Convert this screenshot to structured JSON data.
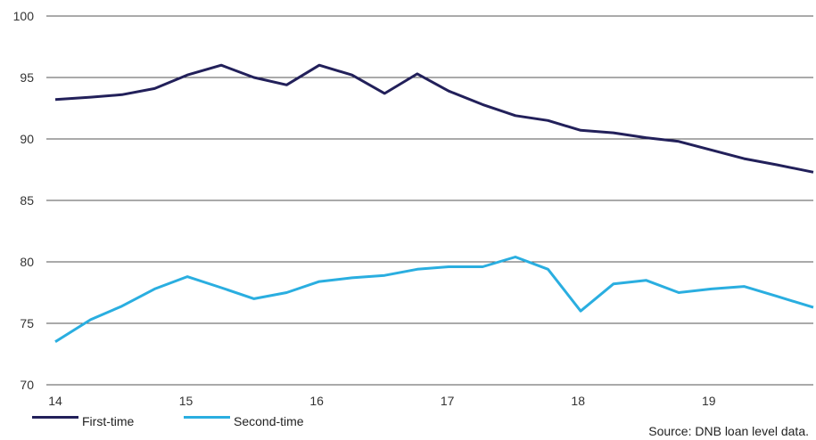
{
  "chart_data": {
    "type": "line",
    "ylim": [
      70,
      100
    ],
    "xlim": [
      14,
      19.8
    ],
    "yticks": [
      70,
      75,
      80,
      85,
      90,
      95,
      100
    ],
    "xticks": [
      14,
      15,
      16,
      17,
      18,
      19
    ],
    "grid": "horizontal",
    "legend_placement": "bottom-left",
    "series": [
      {
        "name": "First-time",
        "color": "#22205a",
        "x": [
          14,
          14.27,
          14.51,
          14.76,
          15.01,
          15.27,
          15.52,
          15.77,
          16.02,
          16.27,
          16.52,
          16.77,
          17.01,
          17.27,
          17.52,
          17.77,
          18.02,
          18.27,
          18.52,
          18.77,
          19.02,
          19.27,
          19.52,
          19.8
        ],
        "values": [
          93.2,
          93.4,
          93.6,
          94.1,
          95.2,
          96.0,
          95.0,
          94.4,
          96.0,
          95.2,
          93.7,
          95.3,
          93.9,
          92.8,
          91.9,
          91.5,
          90.7,
          90.5,
          90.1,
          89.8,
          89.1,
          88.4,
          87.9,
          87.3
        ]
      },
      {
        "name": "Second-time",
        "color": "#2aaee0",
        "x": [
          14,
          14.27,
          14.51,
          14.76,
          15.01,
          15.27,
          15.52,
          15.77,
          16.02,
          16.27,
          16.52,
          16.77,
          17.01,
          17.27,
          17.52,
          17.77,
          18.02,
          18.27,
          18.52,
          18.77,
          19.02,
          19.27,
          19.52,
          19.8
        ],
        "values": [
          73.5,
          75.3,
          76.4,
          77.8,
          78.8,
          77.9,
          77.0,
          77.5,
          78.4,
          78.7,
          78.9,
          79.4,
          79.6,
          79.6,
          80.4,
          79.4,
          76.0,
          78.2,
          78.5,
          77.5,
          77.8,
          78.0,
          77.2,
          76.3
        ]
      }
    ]
  },
  "legend": {
    "items": [
      "First-time",
      "Second-time"
    ]
  },
  "source": "Source: DNB loan level data."
}
